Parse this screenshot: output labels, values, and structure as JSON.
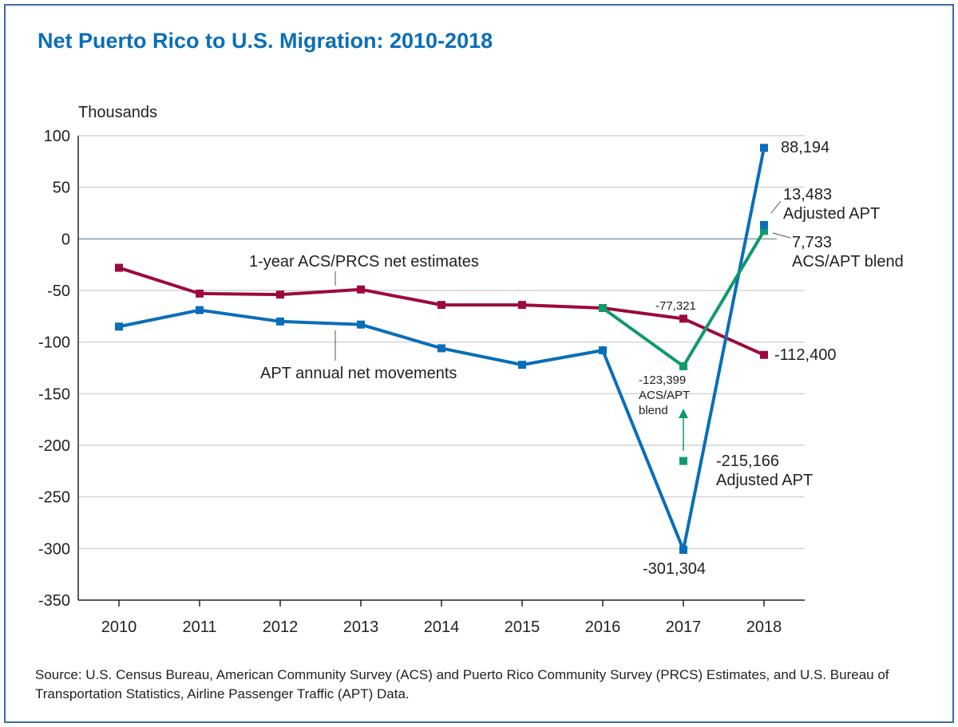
{
  "title": "Net Puerto Rico to U.S. Migration: 2010-2018",
  "source": "Source: U.S. Census Bureau, American Community Survey (ACS) and Puerto Rico Community Survey (PRCS) Estimates, and U.S. Bureau of Transportation Statistics, Airline Passenger Traffic (APT) Data.",
  "chart_data": {
    "type": "line",
    "title": "Net Puerto Rico to U.S. Migration: 2010-2018",
    "ylabel": "Thousands",
    "xlabel": "",
    "ylim": [
      -350,
      100
    ],
    "yticks": [
      100,
      50,
      0,
      -50,
      -100,
      -150,
      -200,
      -250,
      -300,
      -350
    ],
    "x": [
      "2010",
      "2011",
      "2012",
      "2013",
      "2014",
      "2015",
      "2016",
      "2017",
      "2018"
    ],
    "grid": true,
    "series": [
      {
        "name": "1-year ACS/PRCS net estimates",
        "color": "#9b0b3a",
        "values": [
          -28,
          -53,
          -54,
          -49,
          -64,
          -64,
          -67,
          -77.321,
          -112.4
        ]
      },
      {
        "name": "APT annual net movements",
        "color": "#0a6eb8",
        "values": [
          -85,
          -69,
          -80,
          -83,
          -106,
          -122,
          -108,
          -301.304,
          88.194
        ]
      },
      {
        "name": "ACS/APT blend",
        "color": "#0f9a6a",
        "values": [
          null,
          null,
          null,
          null,
          null,
          null,
          -67,
          -123.399,
          7.733
        ]
      }
    ],
    "extra_points": [
      {
        "x": "2018",
        "y": 13.483,
        "color": "#0a6eb8",
        "label": "13,483",
        "sublabel": "Adjusted APT"
      },
      {
        "x": "2017",
        "y": -215.166,
        "color": "#0f9a6a",
        "label": "-215,166",
        "sublabel": "Adjusted APT"
      }
    ],
    "annotations": [
      {
        "text": "88,194"
      },
      {
        "text": "7,733",
        "sub": "ACS/APT blend"
      },
      {
        "text": "-112,400"
      },
      {
        "text": "-77,321"
      },
      {
        "text": "-123,399",
        "sub": "ACS/APT",
        "sub2": "blend"
      },
      {
        "text": "-301,304"
      }
    ]
  }
}
